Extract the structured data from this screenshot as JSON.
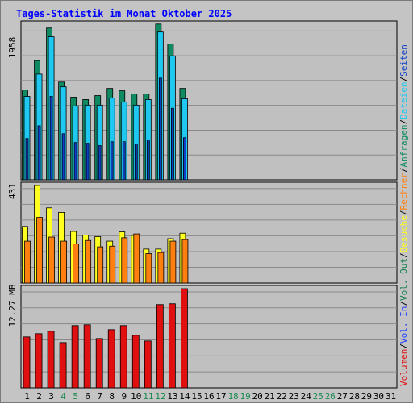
{
  "colors": {
    "background": "#c4c4c4",
    "plot_bg": "#c0c0c0",
    "grid": "#8a8a8a",
    "title": "#0000ff",
    "anfragen": "#0f8a63",
    "dateien": "#1ec8f0",
    "seiten": "#1040c8",
    "besuche": "#ffff20",
    "rechner": "#ff8010",
    "volumen": "#e01010",
    "vol_in": "#2040ff",
    "vol_out": "#1a8050",
    "weekend_label": "#1a8a50"
  },
  "chart_data": [
    {
      "type": "bar",
      "title": "Tages-Statistik im Monat Oktober 2025",
      "ylabel": "1958",
      "ymax": 1958,
      "ylim": [
        0,
        1958
      ],
      "grid": true,
      "categories": [
        "1",
        "2",
        "3",
        "4",
        "5",
        "6",
        "7",
        "8",
        "9",
        "10",
        "11",
        "12",
        "13",
        "14",
        "15",
        "16",
        "17",
        "18",
        "19",
        "20",
        "21",
        "22",
        "23",
        "24",
        "25",
        "26",
        "27",
        "28",
        "29",
        "30",
        "31"
      ],
      "weekend_days": [
        "4",
        "5",
        "11",
        "12",
        "18",
        "19",
        "25",
        "26"
      ],
      "legend_right": [
        "Anfragen",
        "/",
        "Dateien",
        "/",
        "Seiten"
      ],
      "series": [
        {
          "name": "Anfragen",
          "values": [
            1130,
            1500,
            1910,
            1230,
            1040,
            1010,
            1060,
            1150,
            1120,
            1080,
            1080,
            1960,
            1710,
            1150,
            0,
            0,
            0,
            0,
            0,
            0,
            0,
            0,
            0,
            0,
            0,
            0,
            0,
            0,
            0,
            0,
            0
          ]
        },
        {
          "name": "Dateien",
          "values": [
            1050,
            1330,
            1800,
            1170,
            930,
            940,
            940,
            1030,
            980,
            940,
            1010,
            1860,
            1560,
            1020,
            0,
            0,
            0,
            0,
            0,
            0,
            0,
            0,
            0,
            0,
            0,
            0,
            0,
            0,
            0,
            0,
            0
          ]
        },
        {
          "name": "Seiten",
          "values": [
            520,
            680,
            1050,
            580,
            470,
            460,
            430,
            480,
            480,
            450,
            500,
            1280,
            900,
            530,
            0,
            0,
            0,
            0,
            0,
            0,
            0,
            0,
            0,
            0,
            0,
            0,
            0,
            0,
            0,
            0,
            0
          ]
        }
      ]
    },
    {
      "type": "bar",
      "ylabel": "431",
      "ymax": 431,
      "ylim": [
        0,
        431
      ],
      "grid": true,
      "categories": [
        "1",
        "2",
        "3",
        "4",
        "5",
        "6",
        "7",
        "8",
        "9",
        "10",
        "11",
        "12",
        "13",
        "14",
        "15",
        "16",
        "17",
        "18",
        "19",
        "20",
        "21",
        "22",
        "23",
        "24",
        "25",
        "26",
        "27",
        "28",
        "29",
        "30",
        "31"
      ],
      "legend_right": [
        "Besuche",
        "/",
        "Rechner"
      ],
      "series": [
        {
          "name": "Besuche",
          "values": [
            250,
            431,
            332,
            312,
            228,
            212,
            205,
            185,
            226,
            210,
            150,
            150,
            196,
            220,
            0,
            0,
            0,
            0,
            0,
            0,
            0,
            0,
            0,
            0,
            0,
            0,
            0,
            0,
            0,
            0,
            0
          ]
        },
        {
          "name": "Rechner",
          "values": [
            185,
            290,
            203,
            185,
            173,
            188,
            160,
            163,
            200,
            217,
            130,
            135,
            185,
            192,
            0,
            0,
            0,
            0,
            0,
            0,
            0,
            0,
            0,
            0,
            0,
            0,
            0,
            0,
            0,
            0,
            0
          ]
        }
      ]
    },
    {
      "type": "bar",
      "ylabel": "12.27 MB",
      "ymax": 12.27,
      "ylim": [
        0,
        12.27
      ],
      "grid": true,
      "categories": [
        "1",
        "2",
        "3",
        "4",
        "5",
        "6",
        "7",
        "8",
        "9",
        "10",
        "11",
        "12",
        "13",
        "14",
        "15",
        "16",
        "17",
        "18",
        "19",
        "20",
        "21",
        "22",
        "23",
        "24",
        "25",
        "26",
        "27",
        "28",
        "29",
        "30",
        "31"
      ],
      "legend_right": [
        "Volumen",
        "/",
        "Vol. In",
        "/",
        "Vol. Out"
      ],
      "series": [
        {
          "name": "Volumen",
          "values": [
            6.3,
            6.7,
            7.0,
            5.6,
            7.7,
            7.8,
            6.1,
            7.2,
            7.7,
            6.5,
            5.8,
            10.3,
            10.4,
            12.27,
            0,
            0,
            0,
            0,
            0,
            0,
            0,
            0,
            0,
            0,
            0,
            0,
            0,
            0,
            0,
            0,
            0
          ]
        }
      ]
    }
  ]
}
